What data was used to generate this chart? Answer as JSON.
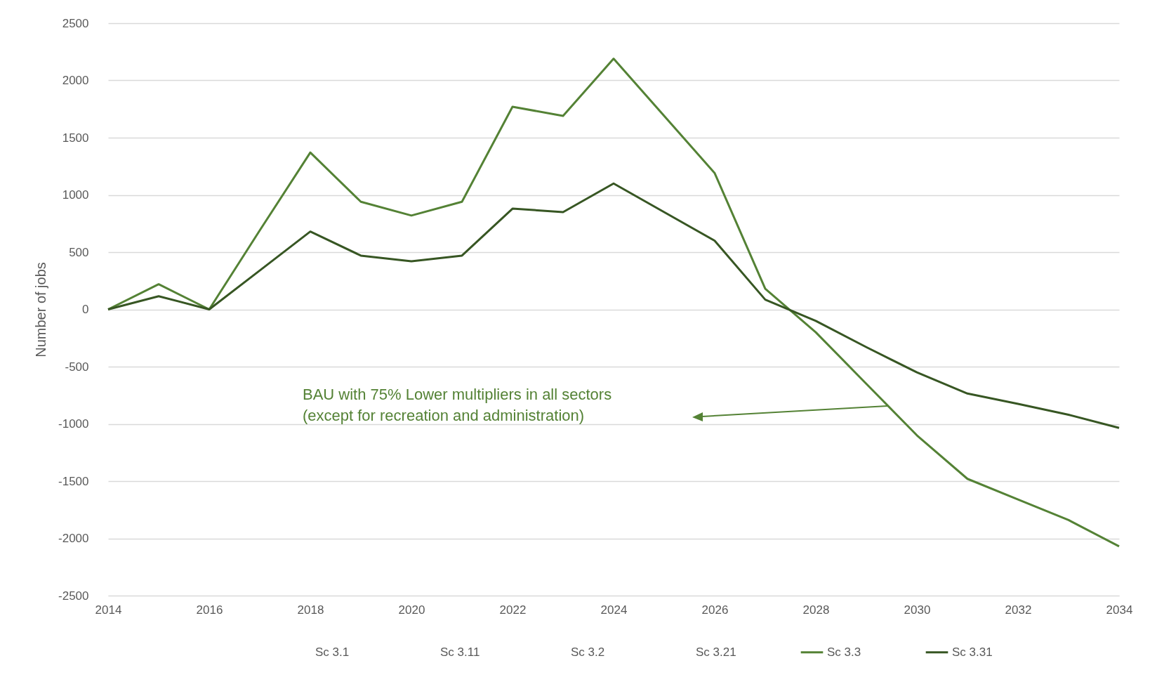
{
  "chart_data": {
    "type": "line",
    "ylabel": "Number of jobs",
    "x": [
      2014,
      2015,
      2016,
      2017,
      2018,
      2019,
      2020,
      2021,
      2022,
      2023,
      2024,
      2025,
      2026,
      2027,
      2028,
      2029,
      2030,
      2031,
      2032,
      2033,
      2034
    ],
    "xlim": [
      2014,
      2034
    ],
    "xticks": [
      2014,
      2016,
      2018,
      2020,
      2022,
      2024,
      2026,
      2028,
      2030,
      2032,
      2034
    ],
    "ylim": [
      -2500,
      2500
    ],
    "yticks": [
      -2500,
      -2000,
      -1500,
      -1000,
      -500,
      0,
      500,
      1000,
      1500,
      2000,
      2500
    ],
    "grid": "y",
    "legend": "bottom",
    "line_style": "solid",
    "marker": "none",
    "annotations": [
      "BAU with 75% Lower multipliers in all sectors\n(except for recreation and administration)"
    ],
    "series": [
      {
        "name": "Sc 3.1",
        "values": [
          null,
          null,
          null,
          null,
          null,
          null,
          null,
          null,
          null,
          null,
          null,
          null,
          null,
          null,
          null,
          null,
          null,
          null,
          null,
          null,
          null
        ]
      },
      {
        "name": "Sc 3.11",
        "values": [
          null,
          null,
          null,
          null,
          null,
          null,
          null,
          null,
          null,
          null,
          null,
          null,
          null,
          null,
          null,
          null,
          null,
          null,
          null,
          null,
          null
        ]
      },
      {
        "name": "Sc 3.2",
        "values": [
          null,
          null,
          null,
          null,
          null,
          null,
          null,
          null,
          null,
          null,
          null,
          null,
          null,
          null,
          null,
          null,
          null,
          null,
          null,
          null,
          null
        ]
      },
      {
        "name": "Sc 3.21",
        "values": [
          null,
          null,
          null,
          null,
          null,
          null,
          null,
          null,
          null,
          null,
          null,
          null,
          null,
          null,
          null,
          null,
          null,
          null,
          null,
          null,
          null
        ]
      },
      {
        "name": "Sc 3.3",
        "color": "#548235",
        "values": [
          0,
          220,
          0,
          690,
          1370,
          940,
          820,
          940,
          1770,
          1690,
          2190,
          1690,
          1190,
          180,
          -200,
          -650,
          -1100,
          -1480,
          -1660,
          -1840,
          -2070
        ]
      },
      {
        "name": "Sc 3.31",
        "color": "#375623",
        "values": [
          0,
          115,
          0,
          340,
          680,
          470,
          420,
          470,
          880,
          850,
          1100,
          850,
          600,
          85,
          -100,
          -330,
          -550,
          -735,
          -825,
          -920,
          -1035
        ]
      }
    ]
  }
}
